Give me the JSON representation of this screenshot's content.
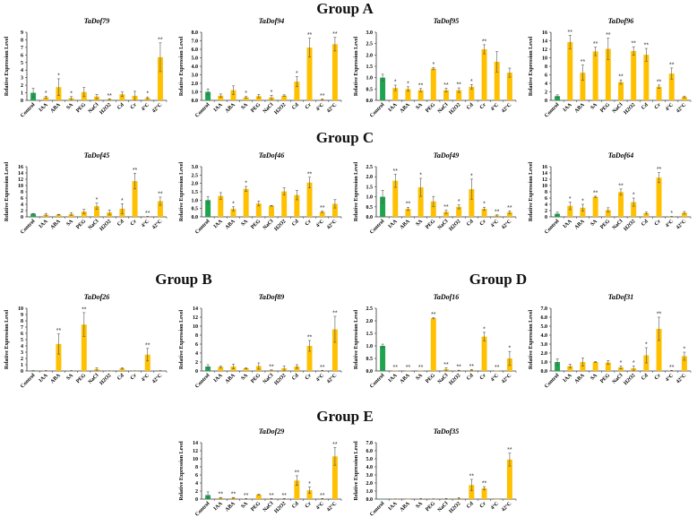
{
  "groups": {
    "A": "Group A",
    "B": "Group B",
    "C": "Group C",
    "D": "Group D",
    "E": "Group E"
  },
  "colors": {
    "control": "#1ea44d",
    "treatment": "#ffc000",
    "error": "#555555",
    "axis": "#333333"
  },
  "chart_data": [
    {
      "type": "bar",
      "title": "TaDof79",
      "ylabel": "Relative Expression Level",
      "ylim": [
        0,
        9
      ],
      "ystep": 1,
      "decimals": 0,
      "categories": [
        "Control",
        "IAA",
        "ABA",
        "SA",
        "PEG",
        "NaCl",
        "H2O2",
        "Cd",
        "Cr",
        "4°C",
        "42°C"
      ],
      "values": [
        1.0,
        0.4,
        1.75,
        0.3,
        1.1,
        0.5,
        0.15,
        0.8,
        0.6,
        0.3,
        5.7
      ],
      "errors": [
        0.6,
        0.15,
        1.1,
        0.2,
        0.6,
        0.3,
        0.05,
        0.3,
        0.6,
        0.15,
        1.9
      ],
      "significance": [
        "",
        "*",
        "*",
        "*",
        "",
        "",
        "**",
        "",
        "",
        "*",
        "**"
      ]
    },
    {
      "type": "bar",
      "title": "TaDof94",
      "ylabel": "Relative Expression Level",
      "ylim": [
        0,
        8
      ],
      "ystep": 1,
      "decimals": 1,
      "categories": [
        "Control",
        "IAA",
        "ABA",
        "SA",
        "PEG",
        "NaCl",
        "H2O2",
        "Cd",
        "Cr",
        "4°C",
        "42°C"
      ],
      "values": [
        1.0,
        0.55,
        1.2,
        0.35,
        0.5,
        0.35,
        0.55,
        2.2,
        6.2,
        0.1,
        6.6
      ],
      "errors": [
        0.35,
        0.2,
        0.5,
        0.1,
        0.2,
        0.25,
        0.1,
        0.6,
        1.1,
        0.05,
        0.8
      ],
      "significance": [
        "",
        "",
        "",
        "*",
        "",
        "*",
        "",
        "*",
        "**",
        "**",
        "**"
      ]
    },
    {
      "type": "bar",
      "title": "TaDof95",
      "ylabel": "Relative Expression Level",
      "ylim": [
        0,
        3
      ],
      "ystep": 0.5,
      "decimals": 1,
      "categories": [
        "Control",
        "IAA",
        "ABA",
        "SA",
        "PEG",
        "NaCl",
        "H2O2",
        "Cd",
        "Cr",
        "4°C",
        "42°C"
      ],
      "values": [
        1.0,
        0.55,
        0.5,
        0.45,
        1.4,
        0.45,
        0.45,
        0.6,
        2.25,
        1.7,
        1.22
      ],
      "errors": [
        0.15,
        0.12,
        0.1,
        0.07,
        0.05,
        0.08,
        0.1,
        0.1,
        0.2,
        0.45,
        0.2
      ],
      "significance": [
        "",
        "*",
        "*",
        "**",
        "*",
        "**",
        "**",
        "*",
        "**",
        "",
        ""
      ]
    },
    {
      "type": "bar",
      "title": "TaDof96",
      "ylabel": "Relative Expression Level",
      "ylim": [
        0,
        16
      ],
      "ystep": 2,
      "decimals": 0,
      "categories": [
        "Control",
        "IAA",
        "ABA",
        "SA",
        "PEG",
        "NaCl",
        "H2O2",
        "Cd",
        "Cr",
        "4°C",
        "42°C"
      ],
      "values": [
        1.0,
        13.7,
        6.5,
        11.5,
        12.1,
        4.3,
        11.6,
        10.7,
        3.2,
        6.3,
        0.8
      ],
      "errors": [
        0.3,
        1.6,
        1.8,
        1.0,
        2.5,
        0.5,
        1.0,
        1.5,
        0.4,
        1.3,
        0.2
      ],
      "significance": [
        "",
        "**",
        "**",
        "**",
        "**",
        "**",
        "**",
        "**",
        "**",
        "**",
        ""
      ]
    },
    {
      "type": "bar",
      "title": "TaDof45",
      "ylabel": "Relative Expression Level",
      "ylim": [
        0,
        16
      ],
      "ystep": 2,
      "decimals": 0,
      "categories": [
        "Control",
        "IAA",
        "ABA",
        "SA",
        "PEG",
        "NaCl",
        "H2O2",
        "Cd",
        "Cr",
        "4°C",
        "42°C"
      ],
      "values": [
        1.0,
        0.7,
        0.7,
        0.9,
        1.7,
        3.4,
        1.4,
        2.6,
        11.4,
        0.1,
        5.0
      ],
      "errors": [
        0.1,
        0.4,
        0.1,
        0.4,
        0.7,
        1.0,
        0.8,
        1.6,
        2.5,
        0.05,
        1.3
      ],
      "significance": [
        "",
        "",
        "",
        "",
        "",
        "*",
        "",
        "*",
        "**",
        "**",
        "**"
      ]
    },
    {
      "type": "bar",
      "title": "TaDof46",
      "ylabel": "Relative Expression Level",
      "ylim": [
        0,
        3
      ],
      "ystep": 0.5,
      "decimals": 1,
      "categories": [
        "Control",
        "IAA",
        "ABA",
        "SA",
        "PEG",
        "NaCl",
        "H2O2",
        "Cd",
        "Cr",
        "4°C",
        "42°C"
      ],
      "values": [
        1.0,
        1.25,
        0.48,
        1.67,
        0.8,
        0.66,
        1.52,
        1.3,
        2.05,
        0.3,
        0.78
      ],
      "errors": [
        0.2,
        0.2,
        0.12,
        0.15,
        0.15,
        0.02,
        0.22,
        0.28,
        0.32,
        0.05,
        0.25
      ],
      "significance": [
        "",
        "",
        "*",
        "*",
        "",
        "",
        "",
        "",
        "**",
        "**",
        ""
      ]
    },
    {
      "type": "bar",
      "title": "TaDof49",
      "ylabel": "Relative Expression Level",
      "ylim": [
        0,
        2.5
      ],
      "ystep": 0.5,
      "decimals": 1,
      "categories": [
        "Control",
        "IAA",
        "ABA",
        "SA",
        "PEG",
        "NaCl",
        "H2O2",
        "Cd",
        "Cr",
        "4°C",
        "42°C"
      ],
      "values": [
        1.0,
        1.8,
        0.4,
        1.47,
        0.77,
        0.25,
        0.5,
        1.38,
        0.4,
        0.07,
        0.23
      ],
      "errors": [
        0.32,
        0.33,
        0.08,
        0.45,
        0.25,
        0.08,
        0.1,
        0.5,
        0.08,
        0.03,
        0.07
      ],
      "significance": [
        "",
        "**",
        "**",
        "*",
        "",
        "**",
        "*",
        "*",
        "*",
        "**",
        "**"
      ]
    },
    {
      "type": "bar",
      "title": "TaDof64",
      "ylabel": "Relative Expression Level",
      "ylim": [
        0,
        16
      ],
      "ystep": 2,
      "decimals": 0,
      "categories": [
        "Control",
        "IAA",
        "ABA",
        "SA",
        "PEG",
        "NaCl",
        "H2O2",
        "Cd",
        "Cr",
        "4°C",
        "42°C"
      ],
      "values": [
        1.0,
        3.5,
        2.9,
        6.4,
        2.2,
        7.9,
        4.7,
        1.2,
        12.5,
        0.1,
        1.3
      ],
      "errors": [
        0.5,
        1.2,
        1.1,
        0.2,
        0.7,
        1.0,
        1.3,
        0.3,
        1.6,
        0.05,
        0.4
      ],
      "significance": [
        "",
        "*",
        "*",
        "**",
        "",
        "**",
        "*",
        "",
        "**",
        "*",
        ""
      ]
    },
    {
      "type": "bar",
      "title": "TaDof26",
      "ylabel": "Relative Expression Level",
      "ylim": [
        0,
        10
      ],
      "ystep": 1,
      "decimals": 0,
      "categories": [
        "Control",
        "IAA",
        "ABA",
        "SA",
        "PEG",
        "NaCl",
        "H2O2",
        "Cd",
        "Cr",
        "4°C",
        "42°C"
      ],
      "values": [
        0.05,
        0.05,
        4.3,
        0.05,
        7.4,
        0.3,
        0.02,
        0.4,
        0.02,
        2.6,
        0.05
      ],
      "errors": [
        0.02,
        0.02,
        1.6,
        0.02,
        1.9,
        0.2,
        0.01,
        0.1,
        0.01,
        1.0,
        0.02
      ],
      "significance": [
        "",
        "",
        "**",
        "",
        "**",
        "",
        "",
        "",
        "",
        "**",
        ""
      ]
    },
    {
      "type": "bar",
      "title": "TaDof89",
      "ylabel": "Relative Expression Level",
      "ylim": [
        0,
        14
      ],
      "ystep": 2,
      "decimals": 0,
      "categories": [
        "Control",
        "IAA",
        "ABA",
        "SA",
        "PEG",
        "NaCl",
        "H2O2",
        "Cd",
        "Cr",
        "4°C",
        "42°C"
      ],
      "values": [
        1.0,
        0.9,
        1.0,
        0.6,
        1.1,
        0.2,
        0.6,
        1.0,
        5.6,
        0.1,
        9.3
      ],
      "errors": [
        0.4,
        0.2,
        0.5,
        0.1,
        0.7,
        0.05,
        0.5,
        0.4,
        1.2,
        0.05,
        2.9
      ],
      "significance": [
        "",
        "",
        "",
        "",
        "",
        "**",
        "",
        "",
        "**",
        "**",
        "**"
      ]
    },
    {
      "type": "bar",
      "title": "TaDof16",
      "ylabel": "Relative Expression Level",
      "ylim": [
        0,
        2.5
      ],
      "ystep": 0.5,
      "decimals": 1,
      "categories": [
        "Control",
        "IAA",
        "ABA",
        "SA",
        "PEG",
        "NaCl",
        "H2O2",
        "Cd",
        "Cr",
        "4°C",
        "42°C"
      ],
      "values": [
        1.0,
        0.01,
        0.01,
        0.01,
        2.1,
        0.07,
        0.02,
        0.04,
        1.37,
        0.01,
        0.5
      ],
      "errors": [
        0.07,
        0,
        0,
        0,
        0.02,
        0.06,
        0.01,
        0.02,
        0.17,
        0,
        0.28
      ],
      "significance": [
        "",
        "**",
        "**",
        "**",
        "**",
        "**",
        "**",
        "**",
        "*",
        "**",
        "*"
      ]
    },
    {
      "type": "bar",
      "title": "TaDof31",
      "ylabel": "Relative Expression Level",
      "ylim": [
        0,
        7
      ],
      "ystep": 1,
      "decimals": 1,
      "categories": [
        "Control",
        "IAA",
        "ABA",
        "SA",
        "PEG",
        "NaCl",
        "H2O2",
        "Cd",
        "Cr",
        "4°C",
        "42°C"
      ],
      "values": [
        1.0,
        0.55,
        1.0,
        1.0,
        0.95,
        0.4,
        0.3,
        1.75,
        4.7,
        0.05,
        1.65
      ],
      "errors": [
        0.35,
        0.2,
        0.45,
        0.05,
        0.2,
        0.15,
        0.25,
        0.85,
        1.3,
        0.02,
        0.45
      ],
      "significance": [
        "",
        "",
        "",
        "",
        "",
        "*",
        "*",
        "*",
        "**",
        "**",
        "*"
      ]
    },
    {
      "type": "bar",
      "title": "TaDof29",
      "ylabel": "Relative Expression Level",
      "ylim": [
        0,
        14
      ],
      "ystep": 2,
      "decimals": 0,
      "categories": [
        "Control",
        "IAA",
        "ABA",
        "SA",
        "PEG",
        "NaCl",
        "H2O2",
        "Cd",
        "Cr",
        "4°C",
        "42°C"
      ],
      "values": [
        1.0,
        0.3,
        0.3,
        0.1,
        1.1,
        0.1,
        0.1,
        4.6,
        2.2,
        0.1,
        10.6
      ],
      "errors": [
        0.8,
        0.1,
        0.1,
        0.05,
        0.1,
        0.05,
        0.05,
        1.2,
        0.8,
        0.05,
        2.2
      ],
      "significance": [
        "",
        "**",
        "**",
        "**",
        "",
        "**",
        "**",
        "**",
        "*",
        "**",
        "**"
      ]
    },
    {
      "type": "bar",
      "title": "TaDof35",
      "ylabel": "Relative Expression Level",
      "ylim": [
        0,
        7
      ],
      "ystep": 1,
      "decimals": 1,
      "categories": [
        "Control",
        "IAA",
        "ABA",
        "SA",
        "PEG",
        "NaCl",
        "H2O2",
        "Cd",
        "Cr",
        "4°C",
        "42°C"
      ],
      "values": [
        0.0,
        0.02,
        0.0,
        0.05,
        0.03,
        0.05,
        0.1,
        1.75,
        1.35,
        0.0,
        4.9
      ],
      "errors": [
        0,
        0.01,
        0,
        0.02,
        0.01,
        0.03,
        0.08,
        0.7,
        0.2,
        0,
        0.8
      ],
      "significance": [
        "",
        "",
        "",
        "",
        "",
        "",
        "",
        "**",
        "**",
        "",
        "**"
      ]
    }
  ]
}
